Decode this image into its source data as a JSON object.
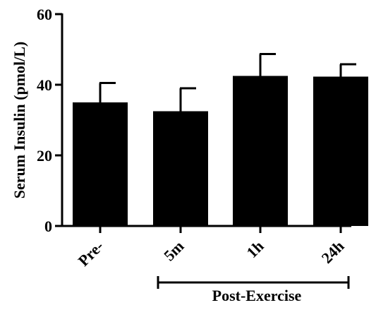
{
  "chart_data": {
    "type": "bar",
    "categories": [
      "Pre-",
      "5m",
      "1h",
      "24h"
    ],
    "values": [
      35,
      32.5,
      42.5,
      42.3
    ],
    "error_upper": [
      40.5,
      39,
      48.7,
      45.8
    ],
    "ylabel": "Serum Insulin (pmol/L)",
    "xlabel": "",
    "ylim": [
      0,
      60
    ],
    "yticks": [
      0,
      20,
      40,
      60
    ],
    "grid": false,
    "bar_color": "#000000",
    "group_bracket": {
      "label": "Post-Exercise",
      "from_category": 1,
      "to_category": 3
    }
  }
}
